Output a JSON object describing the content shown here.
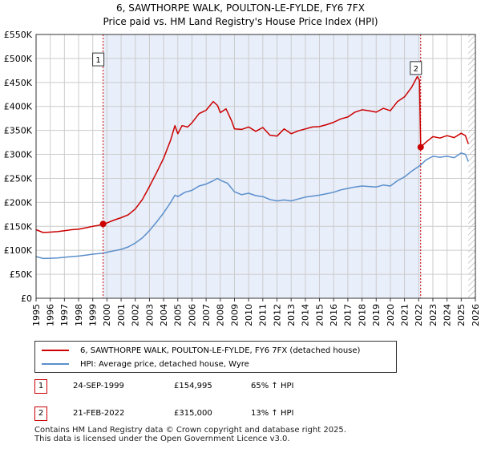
{
  "title": {
    "line1": "6, SAWTHORPE WALK, POULTON-LE-FYLDE, FY6 7FX",
    "line2": "Price paid vs. HM Land Registry's House Price Index (HPI)"
  },
  "colors": {
    "property": "#cc0000",
    "hpi": "#5b8fcc",
    "shade": "#e8eefa",
    "grid": "#cccccc"
  },
  "chart_data": {
    "type": "line",
    "xlim": [
      1995,
      2026
    ],
    "ylim": [
      0,
      550000
    ],
    "x_ticks": [
      1995,
      1996,
      1997,
      1998,
      1999,
      2000,
      2001,
      2002,
      2003,
      2004,
      2005,
      2006,
      2007,
      2008,
      2009,
      2010,
      2011,
      2012,
      2013,
      2014,
      2015,
      2016,
      2017,
      2018,
      2019,
      2020,
      2021,
      2022,
      2023,
      2024,
      2025,
      2026
    ],
    "y_ticks": [
      {
        "v": 0,
        "label": "£0"
      },
      {
        "v": 50000,
        "label": "£50K"
      },
      {
        "v": 100000,
        "label": "£100K"
      },
      {
        "v": 150000,
        "label": "£150K"
      },
      {
        "v": 200000,
        "label": "£200K"
      },
      {
        "v": 250000,
        "label": "£250K"
      },
      {
        "v": 300000,
        "label": "£300K"
      },
      {
        "v": 350000,
        "label": "£350K"
      },
      {
        "v": 400000,
        "label": "£400K"
      },
      {
        "v": 450000,
        "label": "£450K"
      },
      {
        "v": 500000,
        "label": "£500K"
      },
      {
        "v": 550000,
        "label": "£550K"
      }
    ],
    "shaded_ranges": [
      [
        1999.73,
        2022.14
      ]
    ],
    "hatched_from": 2025.5,
    "series": [
      {
        "name": "6, SAWTHORPE WALK, POULTON-LE-FYLDE, FY6 7FX (detached house)",
        "color": "#cc0000",
        "points": [
          [
            1995.0,
            143000
          ],
          [
            1995.5,
            137000
          ],
          [
            1996.0,
            138000
          ],
          [
            1996.5,
            139000
          ],
          [
            1997.0,
            141000
          ],
          [
            1997.5,
            143000
          ],
          [
            1998.0,
            144000
          ],
          [
            1998.5,
            147000
          ],
          [
            1999.0,
            150000
          ],
          [
            1999.4,
            152000
          ],
          [
            1999.73,
            154995
          ],
          [
            2000.0,
            157000
          ],
          [
            2000.5,
            163000
          ],
          [
            2001.0,
            168000
          ],
          [
            2001.5,
            174000
          ],
          [
            2002.0,
            186000
          ],
          [
            2002.5,
            206000
          ],
          [
            2003.0,
            233000
          ],
          [
            2003.5,
            262000
          ],
          [
            2004.0,
            292000
          ],
          [
            2004.5,
            330000
          ],
          [
            2004.8,
            360000
          ],
          [
            2005.0,
            343000
          ],
          [
            2005.3,
            360000
          ],
          [
            2005.7,
            357000
          ],
          [
            2006.0,
            366000
          ],
          [
            2006.5,
            385000
          ],
          [
            2007.0,
            392000
          ],
          [
            2007.5,
            410000
          ],
          [
            2007.8,
            402000
          ],
          [
            2008.0,
            387000
          ],
          [
            2008.4,
            395000
          ],
          [
            2008.8,
            370000
          ],
          [
            2009.0,
            353000
          ],
          [
            2009.5,
            352000
          ],
          [
            2010.0,
            357000
          ],
          [
            2010.5,
            348000
          ],
          [
            2011.0,
            356000
          ],
          [
            2011.5,
            340000
          ],
          [
            2012.0,
            338000
          ],
          [
            2012.5,
            353000
          ],
          [
            2013.0,
            343000
          ],
          [
            2013.5,
            349000
          ],
          [
            2014.0,
            353000
          ],
          [
            2014.5,
            357000
          ],
          [
            2015.0,
            358000
          ],
          [
            2015.5,
            362000
          ],
          [
            2016.0,
            367000
          ],
          [
            2016.5,
            374000
          ],
          [
            2017.0,
            378000
          ],
          [
            2017.5,
            388000
          ],
          [
            2018.0,
            393000
          ],
          [
            2018.5,
            391000
          ],
          [
            2019.0,
            388000
          ],
          [
            2019.5,
            396000
          ],
          [
            2020.0,
            391000
          ],
          [
            2020.5,
            410000
          ],
          [
            2021.0,
            420000
          ],
          [
            2021.5,
            440000
          ],
          [
            2021.9,
            462000
          ],
          [
            2022.05,
            455000
          ],
          [
            2022.14,
            315000
          ],
          [
            2022.5,
            325000
          ],
          [
            2023.0,
            337000
          ],
          [
            2023.5,
            334000
          ],
          [
            2024.0,
            339000
          ],
          [
            2024.5,
            335000
          ],
          [
            2025.0,
            344000
          ],
          [
            2025.3,
            339000
          ],
          [
            2025.5,
            322000
          ]
        ]
      },
      {
        "name": "HPI: Average price, detached house, Wyre",
        "color": "#5b8fcc",
        "points": [
          [
            1995.0,
            87000
          ],
          [
            1995.5,
            83000
          ],
          [
            1996.0,
            83500
          ],
          [
            1996.5,
            84000
          ],
          [
            1997.0,
            85500
          ],
          [
            1997.5,
            87000
          ],
          [
            1998.0,
            88000
          ],
          [
            1998.5,
            90000
          ],
          [
            1999.0,
            92000
          ],
          [
            1999.5,
            93500
          ],
          [
            1999.73,
            94000
          ],
          [
            2000.0,
            96000
          ],
          [
            2000.5,
            99000
          ],
          [
            2001.0,
            102000
          ],
          [
            2001.5,
            107000
          ],
          [
            2002.0,
            115000
          ],
          [
            2002.5,
            126000
          ],
          [
            2003.0,
            141000
          ],
          [
            2003.5,
            159000
          ],
          [
            2004.0,
            178000
          ],
          [
            2004.5,
            200000
          ],
          [
            2004.8,
            215000
          ],
          [
            2005.0,
            212000
          ],
          [
            2005.5,
            221000
          ],
          [
            2006.0,
            225000
          ],
          [
            2006.5,
            234000
          ],
          [
            2007.0,
            238000
          ],
          [
            2007.5,
            245000
          ],
          [
            2007.8,
            250000
          ],
          [
            2008.0,
            246000
          ],
          [
            2008.5,
            240000
          ],
          [
            2009.0,
            222000
          ],
          [
            2009.5,
            216000
          ],
          [
            2010.0,
            219000
          ],
          [
            2010.5,
            214000
          ],
          [
            2011.0,
            212000
          ],
          [
            2011.5,
            206000
          ],
          [
            2012.0,
            203000
          ],
          [
            2012.5,
            205000
          ],
          [
            2013.0,
            203000
          ],
          [
            2013.5,
            207000
          ],
          [
            2014.0,
            211000
          ],
          [
            2014.5,
            213000
          ],
          [
            2015.0,
            215000
          ],
          [
            2015.5,
            218000
          ],
          [
            2016.0,
            221000
          ],
          [
            2016.5,
            226000
          ],
          [
            2017.0,
            229000
          ],
          [
            2017.5,
            232000
          ],
          [
            2018.0,
            234000
          ],
          [
            2018.5,
            233000
          ],
          [
            2019.0,
            232000
          ],
          [
            2019.5,
            236000
          ],
          [
            2020.0,
            234000
          ],
          [
            2020.5,
            245000
          ],
          [
            2021.0,
            253000
          ],
          [
            2021.5,
            265000
          ],
          [
            2022.0,
            275000
          ],
          [
            2022.14,
            278000
          ],
          [
            2022.5,
            288000
          ],
          [
            2023.0,
            296000
          ],
          [
            2023.5,
            294000
          ],
          [
            2024.0,
            296000
          ],
          [
            2024.5,
            293000
          ],
          [
            2025.0,
            303000
          ],
          [
            2025.3,
            300000
          ],
          [
            2025.5,
            285000
          ]
        ]
      }
    ],
    "markers": [
      {
        "label": "1",
        "x": 1999.73,
        "value": 154995,
        "box_value": 498000
      },
      {
        "label": "2",
        "x": 2022.14,
        "value": 315000,
        "box_value": 480000
      }
    ]
  },
  "legend": {
    "property_label": "6, SAWTHORPE WALK, POULTON-LE-FYLDE, FY6 7FX (detached house)",
    "hpi_label": "HPI: Average price, detached house, Wyre"
  },
  "sales": [
    {
      "id": "1",
      "date": "24-SEP-1999",
      "price": "£154,995",
      "hpi": "65% ↑ HPI"
    },
    {
      "id": "2",
      "date": "21-FEB-2022",
      "price": "£315,000",
      "hpi": "13% ↑ HPI"
    }
  ],
  "footer": {
    "line1": "Contains HM Land Registry data © Crown copyright and database right 2025.",
    "line2": "This data is licensed under the Open Government Licence v3.0."
  }
}
